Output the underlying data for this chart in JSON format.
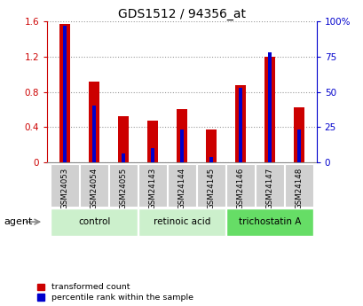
{
  "title": "GDS1512 / 94356_at",
  "samples": [
    "GSM24053",
    "GSM24054",
    "GSM24055",
    "GSM24143",
    "GSM24144",
    "GSM24145",
    "GSM24146",
    "GSM24147",
    "GSM24148"
  ],
  "transformed_count": [
    1.57,
    0.92,
    0.52,
    0.47,
    0.6,
    0.37,
    0.88,
    1.2,
    0.62
  ],
  "percentile_rank": [
    97,
    40,
    6,
    10,
    23,
    4,
    53,
    78,
    23
  ],
  "bar_color_red": "#cc0000",
  "bar_color_blue": "#0000cc",
  "left_axis_color": "#cc0000",
  "right_axis_color": "#0000cc",
  "ylim_left": [
    0,
    1.6
  ],
  "ylim_right": [
    0,
    100
  ],
  "yticks_left": [
    0,
    0.4,
    0.8,
    1.2,
    1.6
  ],
  "yticks_right": [
    0,
    25,
    50,
    75,
    100
  ],
  "ytick_labels_left": [
    "0",
    "0.4",
    "0.8",
    "1.2",
    "1.6"
  ],
  "ytick_labels_right": [
    "0",
    "25",
    "50",
    "75",
    "100%"
  ],
  "legend_items": [
    "transformed count",
    "percentile rank within the sample"
  ],
  "agent_label": "agent",
  "grid_color": "#999999",
  "group_labels": [
    "control",
    "retinoic acid",
    "trichostatin A"
  ],
  "group_ranges": [
    [
      0,
      2
    ],
    [
      3,
      5
    ],
    [
      6,
      8
    ]
  ],
  "group_colors": [
    "#ccf0cc",
    "#ccf0cc",
    "#66dd66"
  ],
  "sample_box_color": "#d0d0d0",
  "bar_width": 0.35,
  "blue_bar_width": 0.12
}
